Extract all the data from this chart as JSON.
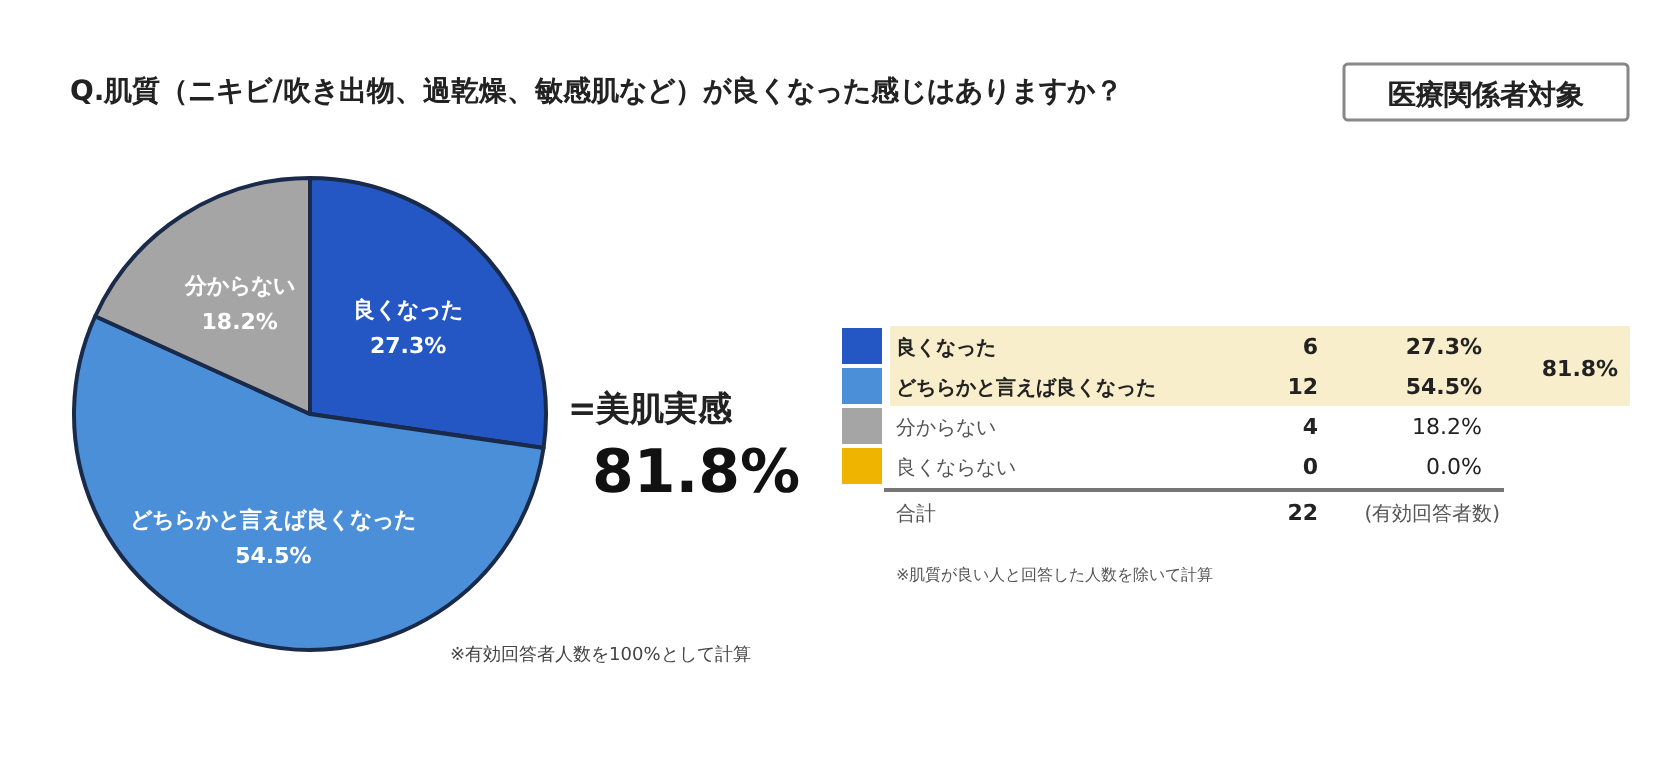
{
  "chart_data": {
    "type": "pie",
    "title": "Q.肌質（ニキビ/吹き出物、過乾燥、敏感肌など）が良くなった感じはありますか？",
    "subtitle": "医療関係者対象",
    "categories": [
      "良くなった",
      "どちらかと言えば良くなった",
      "分からない",
      "良くならない"
    ],
    "values": [
      27.3,
      54.5,
      18.2,
      0.0
    ],
    "value_labels": [
      "27.3%",
      "54.5%",
      "18.2%",
      "0.0%"
    ],
    "colors": [
      "#2456c4",
      "#4a8fd8",
      "#a5a5a5",
      "#eeb400"
    ],
    "legend": "right",
    "annotations": [
      "=美肌実感",
      "81.8%",
      "81.8%",
      "合計",
      "22",
      "(有効回答者数)",
      "※有効回答者人数を100%として計算",
      "※肌質が良い人と回答した人数を除いて計算",
      "6",
      "12",
      "4",
      "0"
    ]
  }
}
